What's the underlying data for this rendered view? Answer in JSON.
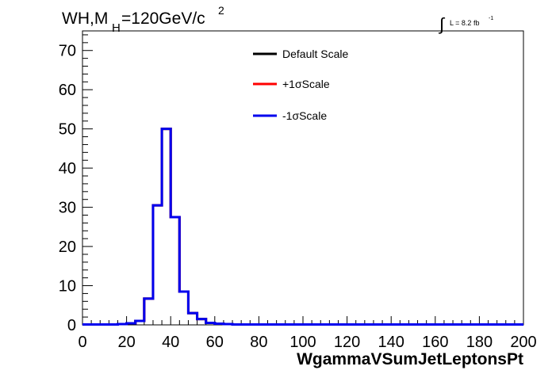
{
  "chart_data": {
    "type": "line",
    "title_main": "WH,M",
    "title_sub": "H",
    "title_rest": "=120GeV/c",
    "title_sup": "2",
    "lumi_symbol": "∫",
    "lumi_text": "L = 8.2 fb",
    "lumi_sup": "-1",
    "xlabel": "WgammaVSumJetLeptonsPt",
    "ylabel": "",
    "xlim": [
      0,
      200
    ],
    "ylim": [
      0,
      75
    ],
    "xticks": [
      0,
      20,
      40,
      60,
      80,
      100,
      120,
      140,
      160,
      180,
      200
    ],
    "yticks": [
      0,
      10,
      20,
      30,
      40,
      50,
      60,
      70
    ],
    "bin_width": 4,
    "legend_position": "top-center",
    "series": [
      {
        "name": "Default Scale",
        "color": "#000000",
        "values": [
          0.1,
          0.1,
          0.1,
          0.1,
          0.2,
          0.4,
          1.0,
          6.7,
          30.5,
          50.0,
          27.5,
          8.5,
          3.0,
          1.5,
          0.5,
          0.3,
          0.2,
          0.1,
          0.1,
          0.1,
          0.1,
          0.1,
          0.1,
          0.1,
          0.1,
          0.1,
          0.1,
          0.1,
          0.1,
          0.1,
          0.1,
          0.1,
          0.1,
          0.1,
          0.1,
          0.1,
          0.1,
          0.1,
          0.1,
          0.1,
          0.1,
          0.1,
          0.1,
          0.1,
          0.1,
          0.1,
          0.1,
          0.1,
          0.1,
          0.1
        ]
      },
      {
        "name": "+1σScale",
        "color": "#ff0000",
        "values": [
          0.1,
          0.1,
          0.1,
          0.1,
          0.2,
          0.4,
          1.0,
          6.7,
          30.5,
          50.0,
          27.5,
          8.5,
          3.0,
          1.5,
          0.5,
          0.3,
          0.2,
          0.1,
          0.1,
          0.1,
          0.1,
          0.1,
          0.1,
          0.1,
          0.1,
          0.1,
          0.1,
          0.1,
          0.1,
          0.1,
          0.1,
          0.1,
          0.1,
          0.1,
          0.1,
          0.1,
          0.1,
          0.1,
          0.1,
          0.1,
          0.1,
          0.1,
          0.1,
          0.1,
          0.1,
          0.1,
          0.1,
          0.1,
          0.1,
          0.1
        ]
      },
      {
        "name": "-1σScale",
        "color": "#0000ee",
        "values": [
          0.1,
          0.1,
          0.1,
          0.1,
          0.2,
          0.4,
          1.0,
          6.7,
          30.5,
          50.0,
          27.5,
          8.5,
          3.0,
          1.5,
          0.5,
          0.3,
          0.2,
          0.1,
          0.1,
          0.1,
          0.1,
          0.1,
          0.1,
          0.1,
          0.1,
          0.1,
          0.1,
          0.1,
          0.1,
          0.1,
          0.1,
          0.1,
          0.1,
          0.1,
          0.1,
          0.1,
          0.1,
          0.1,
          0.1,
          0.1,
          0.1,
          0.1,
          0.1,
          0.1,
          0.1,
          0.1,
          0.1,
          0.1,
          0.1,
          0.1
        ]
      }
    ]
  }
}
